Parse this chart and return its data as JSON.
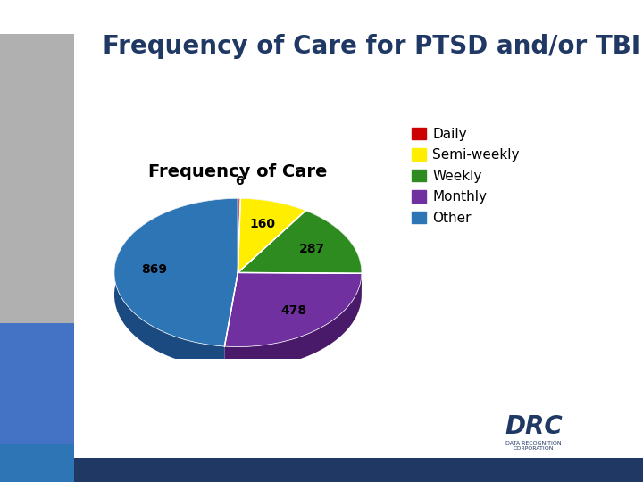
{
  "title": "Frequency of Care for PTSD and/or TBI",
  "pie_title": "Frequency of Care",
  "labels": [
    "Daily",
    "Semi-weekly",
    "Weekly",
    "Monthly",
    "Other"
  ],
  "values": [
    6,
    160,
    287,
    478,
    869
  ],
  "colors": [
    "#CC0000",
    "#FFEE00",
    "#2E8B20",
    "#7030A0",
    "#2E75B6"
  ],
  "dark_colors": [
    "#880000",
    "#AAAA00",
    "#1A5210",
    "#4A1A6A",
    "#1A4A80"
  ],
  "background_color": "#FFFFFF",
  "title_color": "#1F3864",
  "title_fontsize": 20,
  "pie_title_fontsize": 14,
  "legend_fontsize": 11,
  "label_fontsize": 10,
  "startangle": 90
}
